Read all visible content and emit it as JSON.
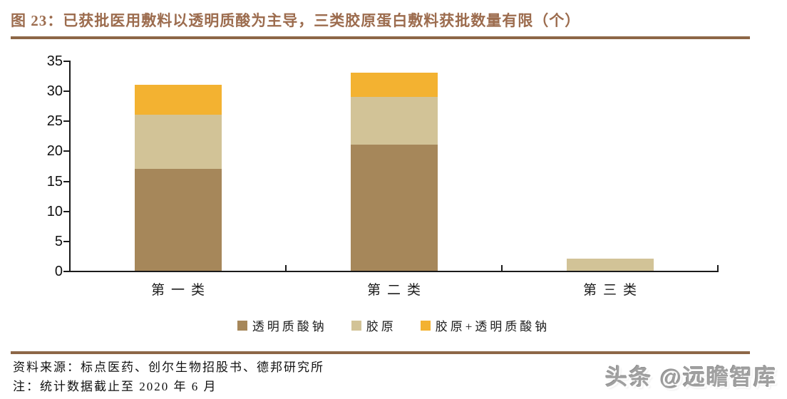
{
  "header": {
    "title": "图 23：已获批医用敷料以透明质酸为主导，三类胶原蛋白敷料获批数量有限（个）"
  },
  "chart_data": {
    "type": "bar",
    "stacked": true,
    "title": "已获批医用敷料以透明质酸为主导，三类胶原蛋白敷料获批数量有限（个）",
    "unit": "个",
    "categories": [
      "第一类",
      "第二类",
      "第三类"
    ],
    "series": [
      {
        "name": "透明质酸钠",
        "color": "#A6875A",
        "values": [
          17,
          21,
          0
        ]
      },
      {
        "name": "胶原",
        "color": "#D2C397",
        "values": [
          9,
          8,
          2
        ]
      },
      {
        "name": "胶原+透明质酸钠",
        "color": "#F3B231",
        "values": [
          5,
          4,
          0
        ]
      }
    ],
    "stack_totals": [
      31,
      33,
      2
    ],
    "ylim": [
      0,
      35
    ],
    "yticks": [
      0,
      5,
      10,
      15,
      20,
      25,
      30,
      35
    ],
    "xlabel": "",
    "ylabel": "",
    "grid": false,
    "legend_position": "bottom"
  },
  "footer": {
    "source": "资料来源：标点医药、创尔生物招股书、德邦研究所",
    "note": "注：统计数据截止至 2020 年 6 月",
    "watermark": "头条 @远瞻智库"
  },
  "colors": {
    "title_brown": "#9C6C4E",
    "rule_brown": "#8D6747",
    "axis_black": "#1a1a1a",
    "watermark_gray": "#a0a0a0"
  }
}
